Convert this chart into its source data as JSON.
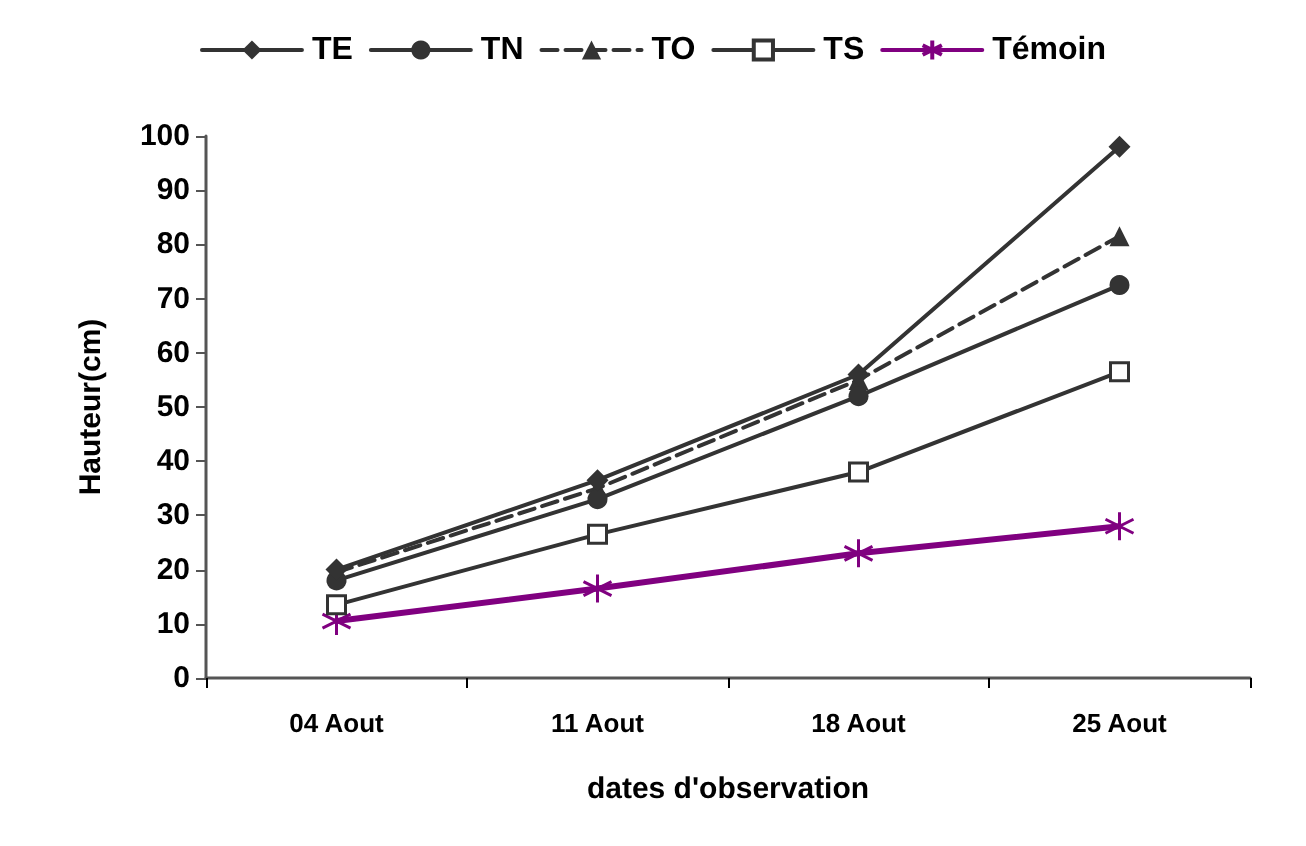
{
  "chart_data": {
    "type": "line",
    "xlabel": "dates d'observation",
    "ylabel": "Hauteur(cm)",
    "categories": [
      "04 Aout",
      "11 Aout",
      "18 Aout",
      "25 Aout"
    ],
    "series": [
      {
        "name": "TE",
        "color": "#333333",
        "marker": "diamond",
        "line_style": "solid",
        "values": [
          20,
          36.5,
          56,
          98
        ]
      },
      {
        "name": "TN",
        "color": "#333333",
        "marker": "circle",
        "line_style": "solid",
        "values": [
          18,
          33,
          52,
          72.5
        ]
      },
      {
        "name": "TO",
        "color": "#333333",
        "marker": "triangle",
        "line_style": "dashed",
        "values": [
          19.5,
          35,
          55,
          81.5
        ]
      },
      {
        "name": "TS",
        "color": "#333333",
        "marker": "square",
        "line_style": "solid",
        "values": [
          13.5,
          26.5,
          38,
          56.5
        ]
      },
      {
        "name": "Témoin",
        "color": "#800080",
        "marker": "cross",
        "line_style": "solid",
        "values": [
          10.5,
          16.5,
          23,
          28
        ]
      }
    ],
    "ylim": [
      0,
      100
    ],
    "yticks": [
      0,
      10,
      20,
      30,
      40,
      50,
      60,
      70,
      80,
      90,
      100
    ],
    "grid": false,
    "legend": "top"
  }
}
